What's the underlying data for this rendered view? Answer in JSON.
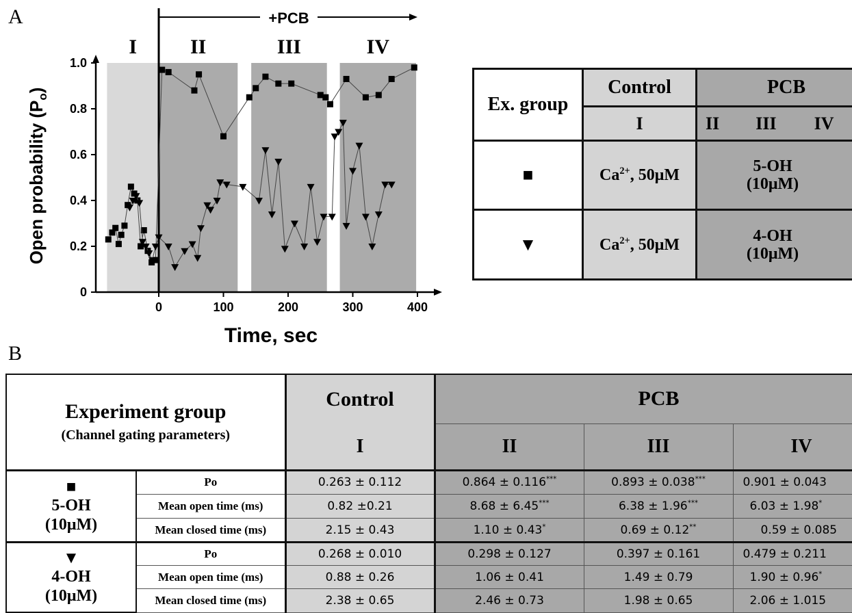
{
  "panel_a_label": "A",
  "panel_b_label": "B",
  "chart_data": {
    "type": "scatter",
    "xlabel": "Time, sec",
    "ylabel": "Open probability (P",
    "ylabel_sub": "o",
    "ylabel_close": ")",
    "xticks": [
      0,
      100,
      200,
      300,
      400
    ],
    "yticks": [
      0,
      0.2,
      0.4,
      0.6,
      0.8,
      1.0
    ],
    "ytick_labels": [
      "0",
      "0.2",
      "0.4",
      "0.6",
      "0.8",
      "1.0"
    ],
    "xlim": [
      -82,
      412
    ],
    "ylim": [
      0,
      1.0
    ],
    "pcb_label": "+PCB",
    "phases": [
      {
        "label": "I",
        "start": -80,
        "end": 0,
        "shade": "#d9d9d9"
      },
      {
        "label": "II",
        "start": 0,
        "end": 122,
        "shade": "#ababab"
      },
      {
        "label": "III",
        "start": 143,
        "end": 260,
        "shade": "#ababab"
      },
      {
        "label": "IV",
        "start": 280,
        "end": 398,
        "shade": "#ababab"
      }
    ],
    "series": [
      {
        "marker": "square",
        "x": [
          -78,
          -72,
          -67,
          -62,
          -58,
          -53,
          -48,
          -43,
          -38,
          -33,
          -28,
          -23,
          -17,
          -11,
          -5,
          5,
          15,
          55,
          62,
          100,
          140,
          150,
          165,
          185,
          205,
          250,
          258,
          265,
          290,
          320,
          340,
          360,
          395
        ],
        "y": [
          0.23,
          0.26,
          0.28,
          0.21,
          0.25,
          0.29,
          0.38,
          0.46,
          0.43,
          0.4,
          0.2,
          0.27,
          0.18,
          0.13,
          0.14,
          0.97,
          0.96,
          0.88,
          0.95,
          0.68,
          0.85,
          0.89,
          0.94,
          0.91,
          0.91,
          0.86,
          0.85,
          0.82,
          0.93,
          0.85,
          0.86,
          0.93,
          0.98
        ]
      },
      {
        "marker": "triangle",
        "x": [
          -45,
          -40,
          -35,
          -30,
          -25,
          -20,
          -15,
          -10,
          -5,
          0,
          15,
          25,
          40,
          52,
          60,
          65,
          75,
          80,
          90,
          95,
          105,
          130,
          155,
          165,
          175,
          185,
          195,
          210,
          225,
          235,
          245,
          255,
          268,
          272,
          278,
          285,
          290,
          300,
          310,
          320,
          330,
          340,
          350,
          360
        ],
        "y": [
          0.37,
          0.4,
          0.42,
          0.39,
          0.22,
          0.2,
          0.17,
          0.14,
          0.2,
          0.24,
          0.2,
          0.11,
          0.18,
          0.21,
          0.15,
          0.28,
          0.38,
          0.36,
          0.4,
          0.48,
          0.47,
          0.46,
          0.4,
          0.62,
          0.34,
          0.57,
          0.19,
          0.3,
          0.2,
          0.46,
          0.22,
          0.33,
          0.33,
          0.68,
          0.7,
          0.74,
          0.29,
          0.53,
          0.64,
          0.33,
          0.2,
          0.34,
          0.47,
          0.47
        ]
      }
    ]
  },
  "table_a": {
    "header_group": "Ex. group",
    "header_control": "Control",
    "header_pcb": "PCB",
    "phase_i": "I",
    "phase_ii": "II",
    "phase_iii": "III",
    "phase_iv": "IV",
    "row1_symbol": "■",
    "row1_control_a": "Ca",
    "row1_control_sup": "2+",
    "row1_control_b": ", 50μM",
    "row1_pcb_name": "5-OH",
    "row1_pcb_conc": "(10μM)",
    "row2_symbol": "▼",
    "row2_control_a": "Ca",
    "row2_control_sup": "2+",
    "row2_control_b": ", 50μM",
    "row2_pcb_name": "4-OH",
    "row2_pcb_conc": "(10μM)"
  },
  "table_b": {
    "title": "Experiment group",
    "subtitle": "(Channel gating parameters)",
    "control": "Control",
    "pcb": "PCB",
    "phase_i": "I",
    "phase_ii": "II",
    "phase_iii": "III",
    "phase_iv": "IV",
    "group1_symbol": "■",
    "group1_name": "5-OH",
    "group1_conc": "(10μM)",
    "group2_symbol": "▼",
    "group2_name": "4-OH",
    "group2_conc": "(10μM)",
    "param_po": "Po",
    "param_open": "Mean open time (ms)",
    "param_closed": "Mean closed  time (ms)",
    "g1_po": [
      "0.263 ± 0.112",
      "0.864 ± 0.116",
      "***",
      "0.893  ± 0.038",
      "***",
      "0.901 ± 0.043"
    ],
    "g1_open": [
      "0.82 ±0.21",
      "8.68 ± 6.45",
      "***",
      "6.38 ± 1.96",
      "***",
      "6.03 ± 1.98",
      "*"
    ],
    "g1_closed": [
      "2.15 ± 0.43",
      "1.10 ± 0.43",
      "*",
      "0.69 ± 0.12",
      "**",
      "0.59 ± 0.085"
    ],
    "g2_po": [
      "0.268 ± 0.010",
      "0.298 ± 0.127",
      "0.397 ± 0.161",
      "0.479 ± 0.211"
    ],
    "g2_open": [
      "0.88 ± 0.26",
      "1.06 ± 0.41",
      "1.49 ± 0.79",
      "1.90 ± 0.96",
      "*"
    ],
    "g2_closed": [
      "2.38 ± 0.65",
      "2.46 ± 0.73",
      "1.98 ± 0.65",
      "2.06 ± 1.015"
    ]
  }
}
